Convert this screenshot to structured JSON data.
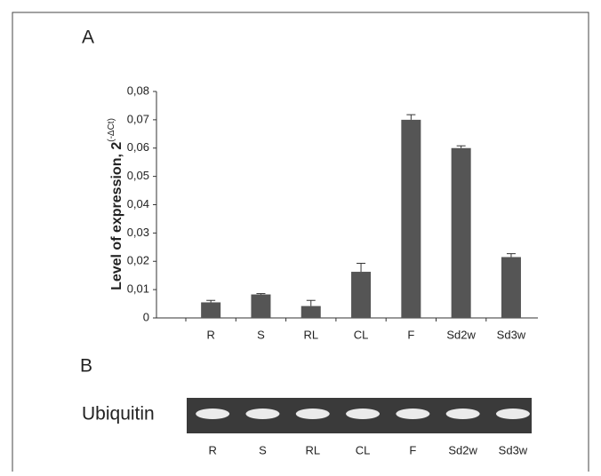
{
  "chart_data": {
    "type": "bar",
    "panel_label": "A",
    "y_label": "Level of expression, 2",
    "y_label_superscript": "(-ΔCt)",
    "categories": [
      "R",
      "S",
      "RL",
      "CL",
      "F",
      "Sd2w",
      "Sd3w"
    ],
    "values": [
      0.0055,
      0.0083,
      0.0042,
      0.0163,
      0.07,
      0.06,
      0.0215
    ],
    "errors": [
      0.0007,
      0.0003,
      0.002,
      0.003,
      0.0018,
      0.0008,
      0.0012
    ],
    "color": "#555555",
    "ylim": [
      0,
      0.08
    ],
    "yticks": [
      0,
      {
        "value": 0.01,
        "label": "0,01"
      },
      {
        "value": 0.02,
        "label": "0,02"
      },
      {
        "value": 0.03,
        "label": "0,03"
      },
      {
        "value": 0.04,
        "label": "0,04"
      },
      {
        "value": 0.05,
        "label": "0,05"
      },
      {
        "value": 0.06,
        "label": "0,06"
      },
      {
        "value": 0.07,
        "label": "0,07"
      },
      {
        "value": 0.08,
        "label": "0,08"
      }
    ]
  },
  "panel_b": {
    "label": "B",
    "gel_label": "Ubiquitin"
  }
}
